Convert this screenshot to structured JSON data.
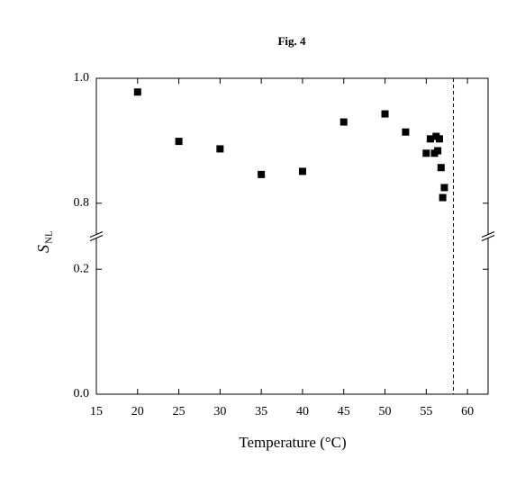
{
  "chart_data": {
    "type": "scatter",
    "title": "Fig. 4",
    "xlabel": "Temperature (°C)",
    "ylabel": "S",
    "ylabel_sub": "NL",
    "x": [
      20,
      25,
      30,
      35,
      40,
      45,
      50,
      52.5,
      55,
      55.5,
      56,
      56.2,
      56.4,
      56.6,
      56.8,
      57.2,
      57.0
    ],
    "values": [
      0.978,
      0.899,
      0.887,
      0.846,
      0.851,
      0.93,
      0.943,
      0.914,
      0.88,
      0.903,
      0.88,
      0.907,
      0.884,
      0.903,
      0.857,
      0.825,
      0.809
    ],
    "color": "#000000",
    "xlim": [
      15,
      62.5
    ],
    "xticks": [
      15,
      20,
      25,
      30,
      35,
      40,
      45,
      50,
      55,
      60
    ],
    "ylim": [
      0,
      1.0
    ],
    "ybreak": [
      0.25,
      0.75
    ],
    "yticks": [
      {
        "value": 0,
        "label": "0.0"
      },
      0.2,
      0.8,
      {
        "value": 1,
        "label": "1.0"
      }
    ],
    "vline": 58.3
  }
}
